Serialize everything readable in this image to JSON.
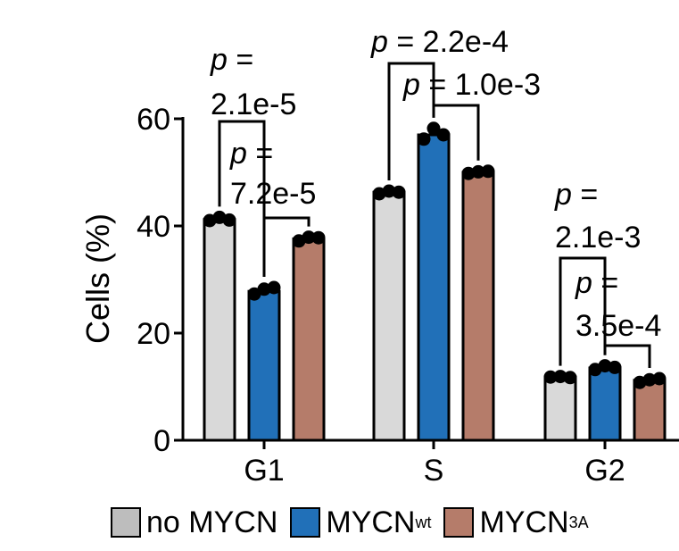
{
  "chart_data": {
    "type": "bar",
    "ylabel": "Cells (%)",
    "ylim": [
      0,
      60
    ],
    "yticks": [
      0,
      20,
      40,
      60
    ],
    "categories": [
      "G1",
      "S",
      "G2"
    ],
    "series": [
      {
        "name": "no MYCN",
        "color": "#d9d9d9",
        "values": [
          41.2,
          46.3,
          11.8
        ],
        "points": [
          [
            41.0,
            41.6,
            41.1
          ],
          [
            46.0,
            46.5,
            46.3
          ],
          [
            11.8,
            11.9,
            11.7
          ]
        ]
      },
      {
        "name": "MYCN",
        "name_sup": "wt",
        "color": "#2170b8",
        "values": [
          27.8,
          57.0,
          13.5
        ],
        "points": [
          [
            27.3,
            28.2,
            28.5
          ],
          [
            56.2,
            58.2,
            57.0
          ],
          [
            13.2,
            13.9,
            13.6
          ]
        ]
      },
      {
        "name": "MYCN",
        "name_sup": "3A",
        "color": "#b57c6a",
        "values": [
          37.6,
          50.0,
          11.2
        ],
        "points": [
          [
            37.2,
            37.9,
            37.8
          ],
          [
            49.8,
            50.1,
            50.2
          ],
          [
            10.8,
            11.3,
            11.5
          ]
        ]
      }
    ],
    "annotations": [
      {
        "group": "G1",
        "from": 0,
        "to": 1,
        "p_label": "p",
        "lines": [
          "=",
          "2.1e-5"
        ]
      },
      {
        "group": "G1",
        "from": 1,
        "to": 2,
        "p_label": "p",
        "lines": [
          "=",
          "7.2e-5"
        ]
      },
      {
        "group": "S",
        "from": 0,
        "to": 1,
        "p_label": "p",
        "lines": [
          "= 2.2e-4"
        ]
      },
      {
        "group": "S",
        "from": 1,
        "to": 2,
        "p_label": "p",
        "lines": [
          "= 1.0e-3"
        ]
      },
      {
        "group": "G2",
        "from": 0,
        "to": 1,
        "p_label": "p",
        "lines": [
          "=",
          "2.1e-3"
        ]
      },
      {
        "group": "G2",
        "from": 1,
        "to": 2,
        "p_label": "p",
        "lines": [
          "=",
          "3.5e-4"
        ]
      }
    ],
    "legend_position": "bottom"
  }
}
